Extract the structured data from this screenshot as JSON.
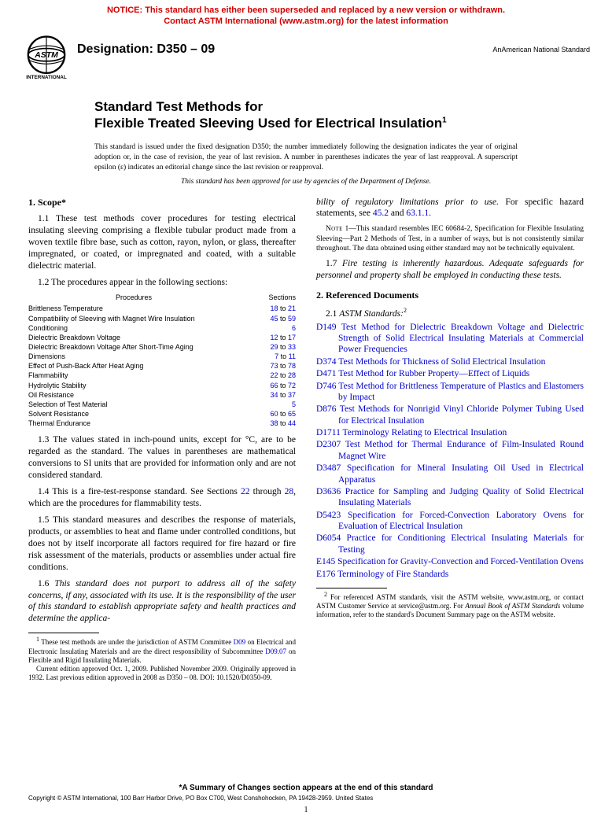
{
  "notice": {
    "line1": "NOTICE: This standard has either been superseded and replaced by a new version or withdrawn.",
    "line2": "Contact ASTM International (www.astm.org) for the latest information"
  },
  "header": {
    "designation_label": "Designation: ",
    "designation_value": "D350 – 09",
    "ans_prefix": "An",
    "ans_text": "American National Standard"
  },
  "title": {
    "line1": "Standard Test Methods for",
    "line2": "Flexible Treated Sleeving Used for Electrical Insulation"
  },
  "intro": "This standard is issued under the fixed designation D350; the number immediately following the designation indicates the year of original adoption or, in the case of revision, the year of last revision. A number in parentheses indicates the year of last reapproval. A superscript epsilon (ε) indicates an editorial change since the last revision or reapproval.",
  "intro2": "This standard has been approved for use by agencies of the Department of Defense.",
  "scope": {
    "heading": "1. Scope*",
    "p11": "1.1 These test methods cover procedures for testing electrical insulating sleeving comprising a flexible tubular product made from a woven textile fibre base, such as cotton, rayon, nylon, or glass, thereafter impregnated, or coated, or impregnated and coated, with a suitable dielectric material.",
    "p12": "1.2 The procedures appear in the following sections:",
    "tbl_hdr_p": "Procedures",
    "tbl_hdr_s": "Sections",
    "procs": [
      {
        "name": "Brittleness Temperature",
        "from": "18",
        "to": "21"
      },
      {
        "name": "Compatibility of Sleeving with Magnet Wire Insulation",
        "from": "45",
        "to": "59"
      },
      {
        "name": "Conditioning",
        "from": "",
        "to": "6"
      },
      {
        "name": "Dielectric Breakdown Voltage",
        "from": "12",
        "to": "17"
      },
      {
        "name": "Dielectric Breakdown Voltage After Short-Time Aging",
        "from": "29",
        "to": "33"
      },
      {
        "name": "Dimensions",
        "from": "7",
        "to": "11"
      },
      {
        "name": "Effect of Push-Back After Heat Aging",
        "from": "73",
        "to": "78"
      },
      {
        "name": "Flammability",
        "from": "22",
        "to": "28"
      },
      {
        "name": "Hydrolytic Stability",
        "from": "66",
        "to": "72"
      },
      {
        "name": "Oil Resistance",
        "from": "34",
        "to": "37"
      },
      {
        "name": "Selection of Test Material",
        "from": "",
        "to": "5"
      },
      {
        "name": "Solvent Resistance",
        "from": "60",
        "to": "65"
      },
      {
        "name": "Thermal Endurance",
        "from": "38",
        "to": "44"
      }
    ],
    "p13": "1.3 The values stated in inch-pound units, except for °C, are to be regarded as the standard. The values in parentheses are mathematical conversions to SI units that are provided for information only and are not considered standard.",
    "p14a": "1.4 This is a fire-test-response standard. See Sections ",
    "p14b": " through ",
    "p14c": ", which are the procedures for flammability tests.",
    "p14_22": "22",
    "p14_28": "28",
    "p15": "1.5 This standard measures and describes the response of materials, products, or assemblies to heat and flame under controlled conditions, but does not by itself incorporate all factors required for fire hazard or fire risk assessment of the materials, products or assemblies under actual fire conditions.",
    "p16": "1.6 This standard does not purport to address all of the safety concerns, if any, associated with its use. It is the responsibility of the user of this standard to establish appropriate safety and health practices and determine the applica-"
  },
  "col2top": {
    "cont_a": "bility of regulatory limitations prior to use.",
    "cont_b": " For specific hazard statements, see ",
    "cont_c": " and ",
    "cont_d": ".",
    "ref45": "45.2",
    "ref63": "63.1.1",
    "note_lab": "Note",
    "note1": " 1—This standard resembles IEC 60684-2, Specification for Flexible Insulating Sleeving—Part 2 Methods of Test, in a number of ways, but is not consistently similar throughout. The data obtained using either standard may not be technically equivalent.",
    "p17": "1.7 Fire testing is inherently hazardous. Adequate safeguards for personnel and property shall be employed in conducting these tests."
  },
  "refdocs": {
    "heading": "2. Referenced Documents",
    "p21_a": "2.1 ",
    "p21_b": "ASTM Standards:",
    "list": [
      {
        "code": "D149",
        "txt": "Test Method for Dielectric Breakdown Voltage and Dielectric Strength of Solid Electrical Insulating Materials at Commercial Power Frequencies"
      },
      {
        "code": "D374",
        "txt": "Test Methods for Thickness of Solid Electrical Insulation"
      },
      {
        "code": "D471",
        "txt": "Test Method for Rubber Property—Effect of Liquids"
      },
      {
        "code": "D746",
        "txt": "Test Method for Brittleness Temperature of Plastics and Elastomers by Impact"
      },
      {
        "code": "D876",
        "txt": "Test Methods for Nonrigid Vinyl Chloride Polymer Tubing Used for Electrical Insulation"
      },
      {
        "code": "D1711",
        "txt": "Terminology Relating to Electrical Insulation"
      },
      {
        "code": "D2307",
        "txt": "Test Method for Thermal Endurance of Film-Insulated Round Magnet Wire"
      },
      {
        "code": "D3487",
        "txt": "Specification for Mineral Insulating Oil Used in Electrical Apparatus"
      },
      {
        "code": "D3636",
        "txt": "Practice for Sampling and Judging Quality of Solid Electrical Insulating Materials"
      },
      {
        "code": "D5423",
        "txt": "Specification for Forced-Convection Laboratory Ovens for Evaluation of Electrical Insulation"
      },
      {
        "code": "D6054",
        "txt": "Practice for Conditioning Electrical Insulating Materials for Testing"
      },
      {
        "code": "E145",
        "txt": "Specification for Gravity-Convection and Forced-Ventilation Ovens"
      },
      {
        "code": "E176",
        "txt": "Terminology of Fire Standards"
      }
    ]
  },
  "fn1_a": "These test methods are under the jurisdiction of ASTM Committee ",
  "fn1_d09": "D09",
  "fn1_b": " on Electrical and Electronic Insulating Materials and are the direct responsibility of Subcommittee ",
  "fn1_d0907": "D09.07",
  "fn1_c": " on Flexible and Rigid Insulating Materials.",
  "fn1_d": "Current edition approved Oct. 1, 2009. Published November 2009. Originally approved in 1932. Last previous edition approved in 2008 as D350 – 08. DOI: 10.1520/D0350-09.",
  "fn2_a": "For referenced ASTM standards, visit the ASTM website, www.astm.org, or contact ASTM Customer Service at service@astm.org. For ",
  "fn2_b": "Annual Book of ASTM Standards",
  "fn2_c": " volume information, refer to the standard's Document Summary page on the ASTM website.",
  "summary": "*A Summary of Changes section appears at the end of this standard",
  "copyright": "Copyright © ASTM International, 100 Barr Harbor Drive, PO Box C700, West Conshohocken, PA 19428-2959. United States",
  "pagenum": "1",
  "to_word": " to "
}
